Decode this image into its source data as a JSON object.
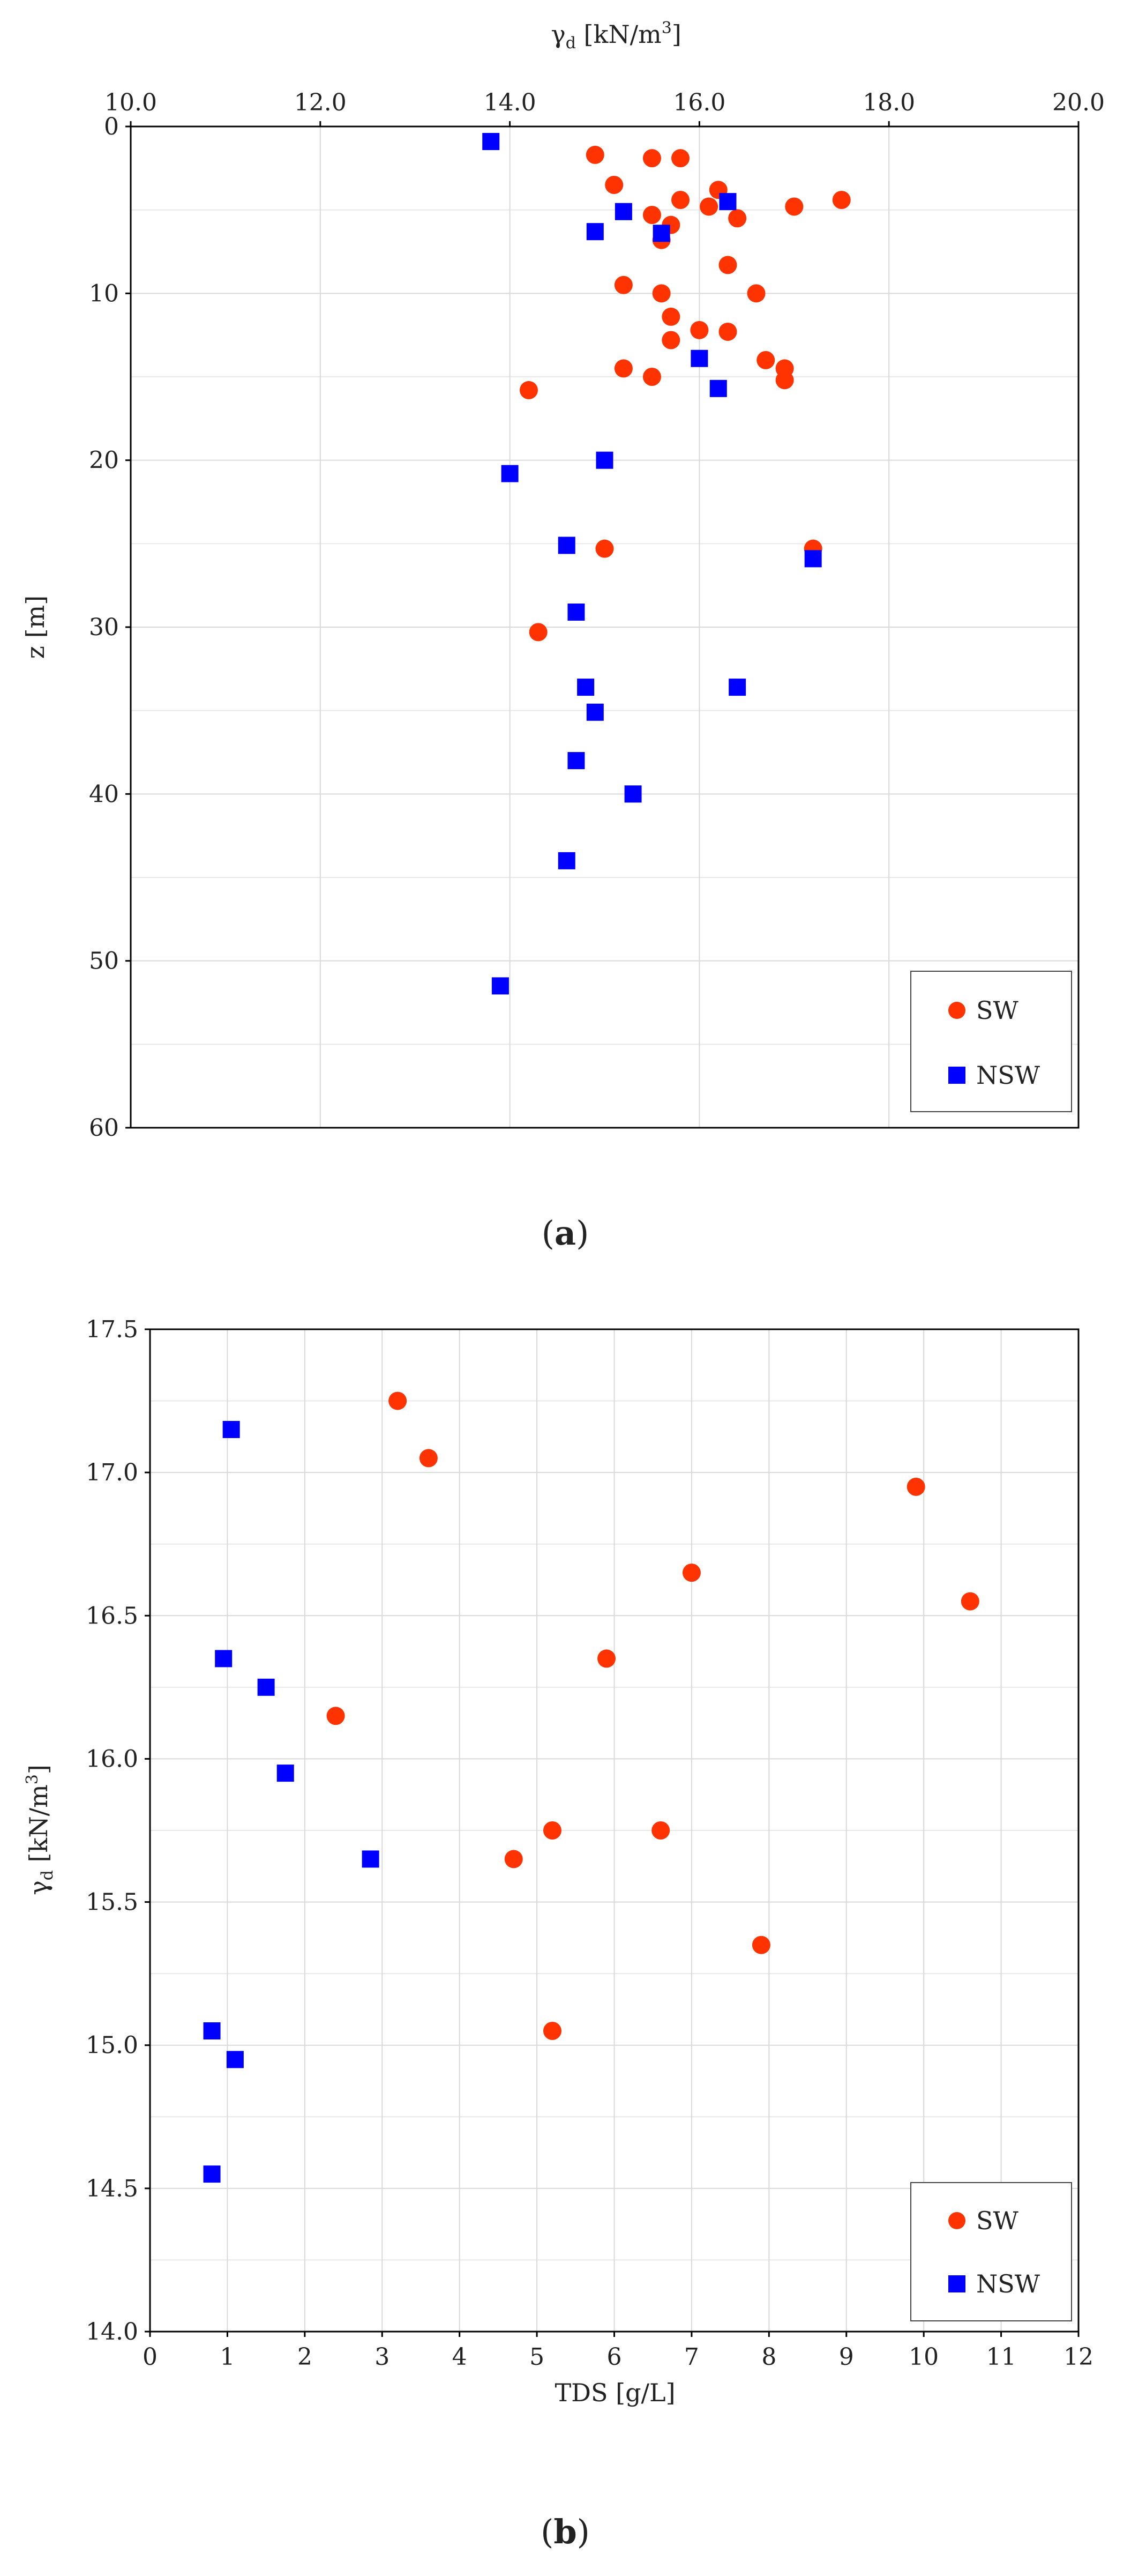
{
  "colors": {
    "sw": "#ff3300",
    "nsw": "#0000ff",
    "grid": "#d9d9d9",
    "axis": "#000000"
  },
  "chart_data": [
    {
      "id": "a",
      "type": "scatter",
      "caption_label": "a",
      "xlabel": "γd [kN/m³]",
      "xlabel_main": "γ",
      "xlabel_sub": "d",
      "xlabel_rest": " [kN/m",
      "xlabel_sup": "3",
      "xlabel_close": "]",
      "ylabel": "z [m]",
      "x_axis_position": "top",
      "y_inverted": true,
      "xlim": [
        10.0,
        20.0
      ],
      "ylim": [
        0,
        60
      ],
      "x_ticks": [
        "10.0",
        "12.0",
        "14.0",
        "16.0",
        "18.0",
        "20.0"
      ],
      "y_ticks": [
        "0",
        "10",
        "20",
        "30",
        "40",
        "50",
        "60"
      ],
      "grid": true,
      "legend_position": "bottom-right",
      "legend": [
        "SW",
        "NSW"
      ],
      "series": [
        {
          "name": "SW",
          "marker": "circle",
          "x": [
            14.9,
            15.5,
            15.8,
            15.1,
            16.2,
            15.8,
            15.5,
            17.5,
            16.1,
            16.4,
            17.0,
            15.7,
            15.6,
            16.3,
            15.2,
            16.6,
            15.6,
            15.7,
            16.0,
            16.3,
            15.7,
            16.7,
            15.2,
            16.9,
            15.5,
            16.9,
            14.2,
            15.0,
            17.2,
            14.3
          ],
          "y": [
            1.7,
            1.9,
            1.9,
            3.5,
            3.8,
            4.4,
            5.3,
            4.4,
            4.8,
            5.5,
            4.8,
            5.9,
            6.8,
            8.3,
            9.5,
            10.0,
            10.0,
            11.4,
            12.2,
            12.3,
            12.8,
            14.0,
            14.5,
            14.5,
            15.0,
            15.2,
            15.8,
            25.3,
            25.3,
            30.3
          ]
        },
        {
          "name": "NSW",
          "marker": "square",
          "x": [
            13.8,
            16.3,
            15.2,
            14.9,
            15.6,
            16.0,
            16.2,
            14.0,
            15.0,
            14.6,
            17.2,
            14.7,
            14.8,
            16.4,
            14.9,
            14.7,
            15.3,
            14.6,
            13.9
          ],
          "y": [
            0.9,
            4.5,
            5.1,
            6.3,
            6.4,
            13.9,
            15.7,
            20.8,
            20.0,
            25.1,
            25.9,
            29.1,
            33.6,
            33.6,
            35.1,
            38.0,
            40.0,
            44.0,
            51.5
          ]
        }
      ]
    },
    {
      "id": "b",
      "type": "scatter",
      "caption_label": "b",
      "xlabel": "TDS [g/L]",
      "ylabel": "γd [kN/m³]",
      "ylabel_main": "γ",
      "ylabel_sub": "d",
      "ylabel_rest": " [kN/m",
      "ylabel_sup": "3",
      "ylabel_close": "]",
      "x_axis_position": "bottom",
      "y_inverted": false,
      "xlim": [
        0,
        12
      ],
      "ylim": [
        14.0,
        17.5
      ],
      "x_ticks": [
        "0",
        "1",
        "2",
        "3",
        "4",
        "5",
        "6",
        "7",
        "8",
        "9",
        "10",
        "11",
        "12"
      ],
      "y_ticks": [
        "14.0",
        "14.5",
        "15.0",
        "15.5",
        "16.0",
        "16.5",
        "17.0",
        "17.5"
      ],
      "grid": true,
      "legend_position": "bottom-right",
      "legend": [
        "SW",
        "NSW"
      ],
      "series": [
        {
          "name": "SW",
          "marker": "circle",
          "x": [
            3.2,
            3.6,
            9.9,
            7.0,
            10.6,
            5.9,
            2.4,
            5.2,
            6.6,
            4.7,
            7.9,
            5.2
          ],
          "y": [
            17.25,
            17.05,
            16.95,
            16.65,
            16.55,
            16.35,
            16.15,
            15.75,
            15.75,
            15.65,
            15.35,
            15.05
          ]
        },
        {
          "name": "NSW",
          "marker": "square",
          "x": [
            1.05,
            0.95,
            1.5,
            1.75,
            2.85,
            0.8,
            1.1,
            0.8
          ],
          "y": [
            17.15,
            16.35,
            16.25,
            15.95,
            15.65,
            15.05,
            14.95,
            14.55
          ]
        }
      ]
    }
  ]
}
